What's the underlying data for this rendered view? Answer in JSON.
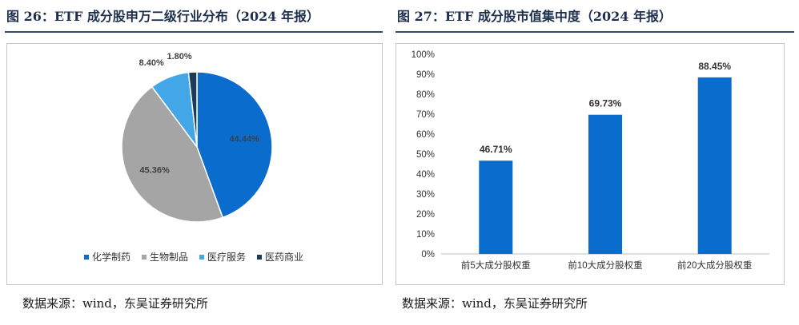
{
  "left_panel": {
    "title": "图 26：ETF 成分股申万二级行业分布（2024 年报）",
    "source": "数据来源：wind，东吴证券研究所"
  },
  "right_panel": {
    "title": "图 27：ETF 成分股市值集中度（2024 年报）",
    "source": "数据来源：wind，东吴证券研究所"
  },
  "chart_data": [
    {
      "type": "pie",
      "title": "图 26：ETF 成分股申万二级行业分布（2024 年报）",
      "categories": [
        "化学制药",
        "生物制品",
        "医疗服务",
        "医药商业"
      ],
      "values": [
        44.44,
        45.36,
        8.4,
        1.8
      ],
      "labels": [
        "44.44%",
        "45.36%",
        "8.40%",
        "1.80%"
      ],
      "colors": [
        "#0a6ccc",
        "#a5a5a5",
        "#43a6e6",
        "#1b3a5c"
      ],
      "legend": "bottom",
      "start_angle": "12 o'clock, clockwise"
    },
    {
      "type": "bar",
      "title": "图 27：ETF 成分股市值集中度（2024 年报）",
      "categories": [
        "前5大成分股权重",
        "前10大成分股权重",
        "前20大成分股权重"
      ],
      "values": [
        46.71,
        69.73,
        88.45
      ],
      "labels": [
        "46.71%",
        "69.73%",
        "88.45%"
      ],
      "ylim": [
        0,
        100
      ],
      "yticks": [
        "0%",
        "10%",
        "20%",
        "30%",
        "40%",
        "50%",
        "60%",
        "70%",
        "80%",
        "90%",
        "100%"
      ],
      "color": "#0a6ccc",
      "grid": false
    }
  ]
}
